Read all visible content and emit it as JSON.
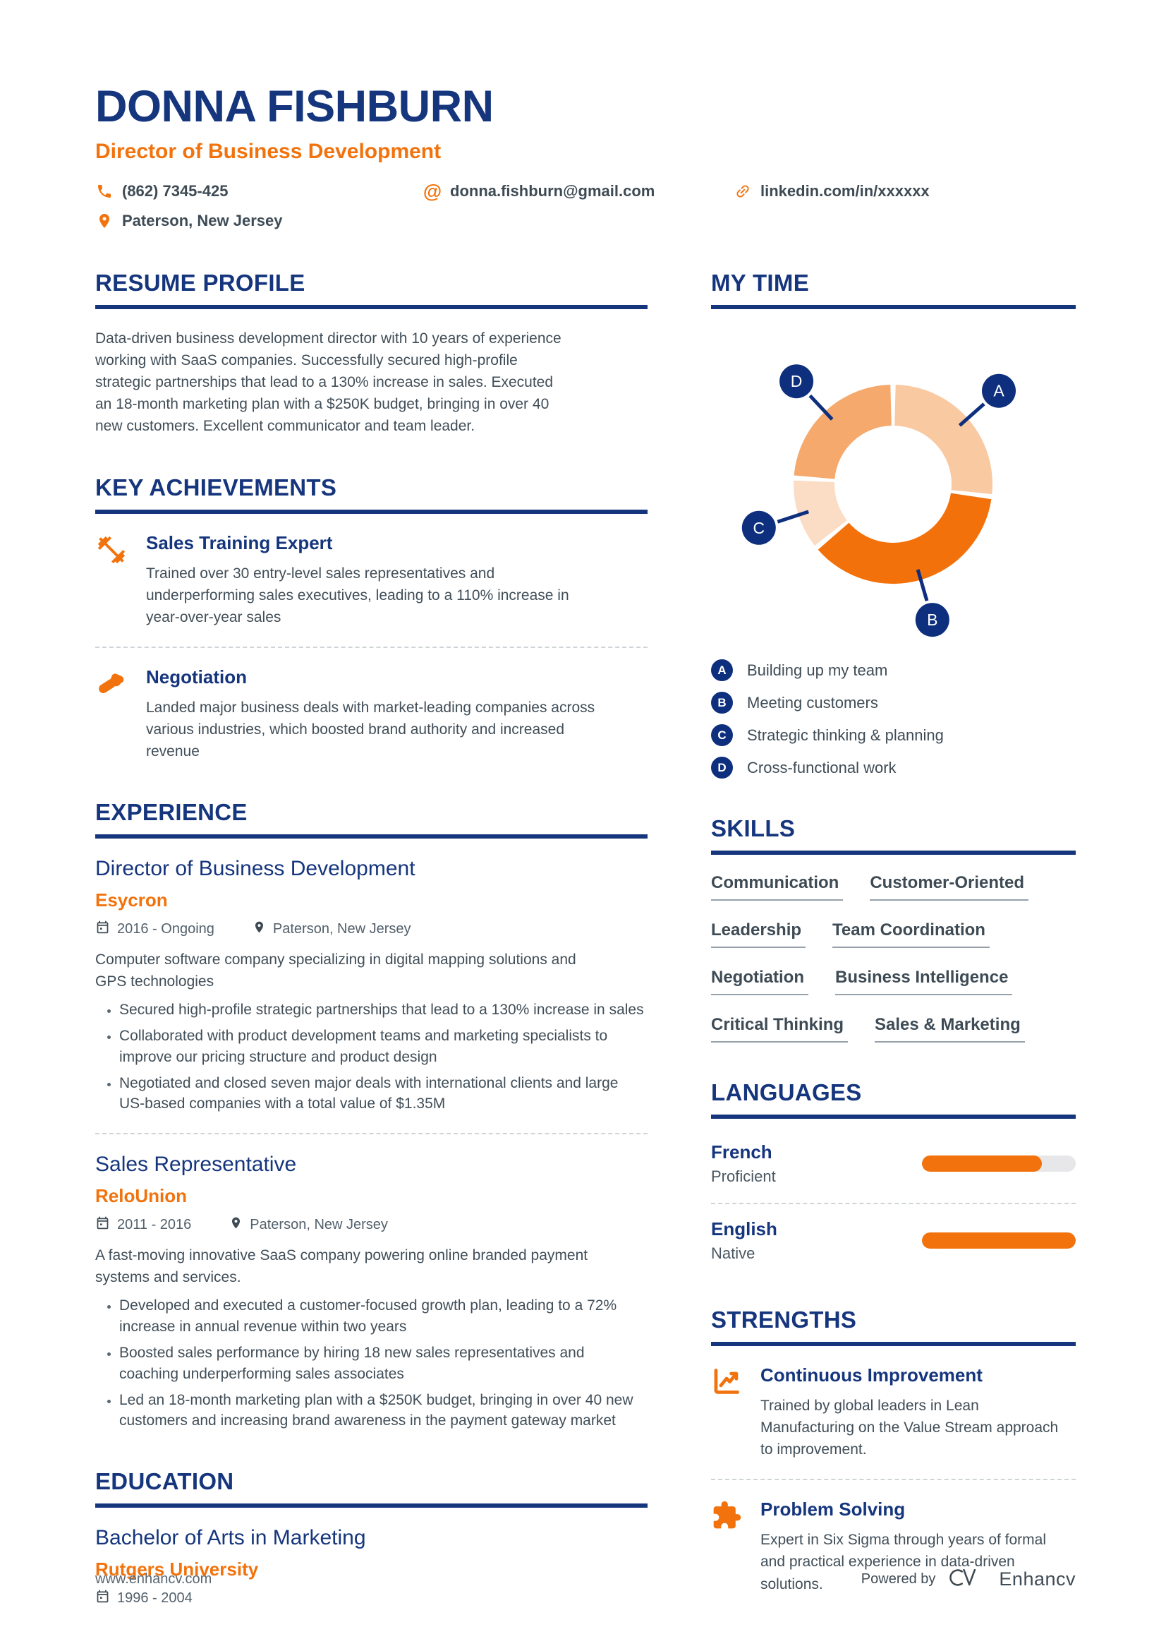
{
  "colors": {
    "navy": "#15357D",
    "orange": "#F2730D",
    "slate": "#3E4B55",
    "muted_gray": "#525F6A"
  },
  "header": {
    "name": "DONNA FISHBURN",
    "title": "Director of Business Development",
    "phone": "(862) 7345-425",
    "email": "donna.fishburn@gmail.com",
    "linkedin": "linkedin.com/in/xxxxxx",
    "location": "Paterson, New Jersey"
  },
  "resume_profile": {
    "heading": "RESUME PROFILE",
    "text": "Data-driven business development director with 10 years of experience working with SaaS companies. Successfully secured high-profile strategic partnerships that lead to a 130% increase in sales. Executed an 18-month marketing plan with a $250K budget, bringing in over 40 new customers. Excellent communicator and team leader."
  },
  "key_achievements": {
    "heading": "KEY ACHIEVEMENTS",
    "items": [
      {
        "icon": "dumbbell-icon",
        "title": "Sales Training Expert",
        "text": "Trained over 30 entry-level sales representatives and underperforming sales executives, leading to a 110% increase in year-over-year sales"
      },
      {
        "icon": "handshake-icon",
        "title": "Negotiation",
        "text": "Landed major business deals with market-leading companies across various industries, which boosted brand authority and increased revenue"
      }
    ]
  },
  "experience": {
    "heading": "EXPERIENCE",
    "jobs": [
      {
        "title": "Director of Business Development",
        "company": "Esycron",
        "dates": "2016 - Ongoing",
        "location": "Paterson, New Jersey",
        "summary": "Computer software company specializing in digital mapping solutions and GPS technologies",
        "bullets": [
          "Secured high-profile strategic partnerships that lead to a 130% increase in sales",
          "Collaborated with product development teams and marketing specialists to improve our pricing structure and product design",
          "Negotiated and closed seven major deals with international clients and large US-based companies with a total value of $1.35M"
        ]
      },
      {
        "title": "Sales Representative",
        "company": "ReloUnion",
        "dates": "2011 - 2016",
        "location": "Paterson, New Jersey",
        "summary": "A fast-moving innovative SaaS company powering online branded payment systems and services.",
        "bullets": [
          "Developed and executed a customer-focused growth plan, leading to a 72% increase in annual revenue within two years",
          "Boosted sales performance by hiring 18 new sales representatives and coaching underperforming sales associates",
          "Led an 18-month marketing plan with a $250K budget, bringing in over 40 new customers and increasing brand awareness in the payment gateway market"
        ]
      }
    ]
  },
  "education": {
    "heading": "EDUCATION",
    "degree": "Bachelor of Arts in Marketing",
    "school": "Rutgers University",
    "dates": "1996 - 2004"
  },
  "chart_data": {
    "type": "pie",
    "donut": true,
    "title": "MY TIME",
    "legend_position": "below",
    "label_color": "#0D2F7D",
    "segments": [
      {
        "label": "A",
        "name": "Building up my team",
        "value": 27,
        "color": "#F9C9A1"
      },
      {
        "label": "B",
        "name": "Meeting customers",
        "value": 37,
        "color": "#F2710B"
      },
      {
        "label": "C",
        "name": "Strategic thinking & planning",
        "value": 12,
        "color": "#FBDCC5"
      },
      {
        "label": "D",
        "name": "Cross-functional work",
        "value": 24,
        "color": "#F6A96C"
      }
    ]
  },
  "skills": {
    "heading": "SKILLS",
    "items": [
      "Communication",
      "Customer-Oriented",
      "Leadership",
      "Team Coordination",
      "Negotiation",
      "Business Intelligence",
      "Critical Thinking",
      "Sales & Marketing"
    ]
  },
  "languages": {
    "heading": "LANGUAGES",
    "items": [
      {
        "name": "French",
        "level": "Proficient",
        "pct": 78
      },
      {
        "name": "English",
        "level": "Native",
        "pct": 100
      }
    ]
  },
  "strengths": {
    "heading": "STRENGTHS",
    "items": [
      {
        "icon": "trend-chart-icon",
        "title": "Continuous Improvement",
        "text": "Trained by global leaders in Lean Manufacturing on the Value Stream approach to improvement."
      },
      {
        "icon": "puzzle-icon",
        "title": "Problem Solving",
        "text": "Expert in Six Sigma through years of formal and practical experience in data-driven solutions."
      }
    ]
  },
  "footer": {
    "website": "www.enhancv.com",
    "powered_by": "Powered by",
    "brand": "Enhancv"
  }
}
